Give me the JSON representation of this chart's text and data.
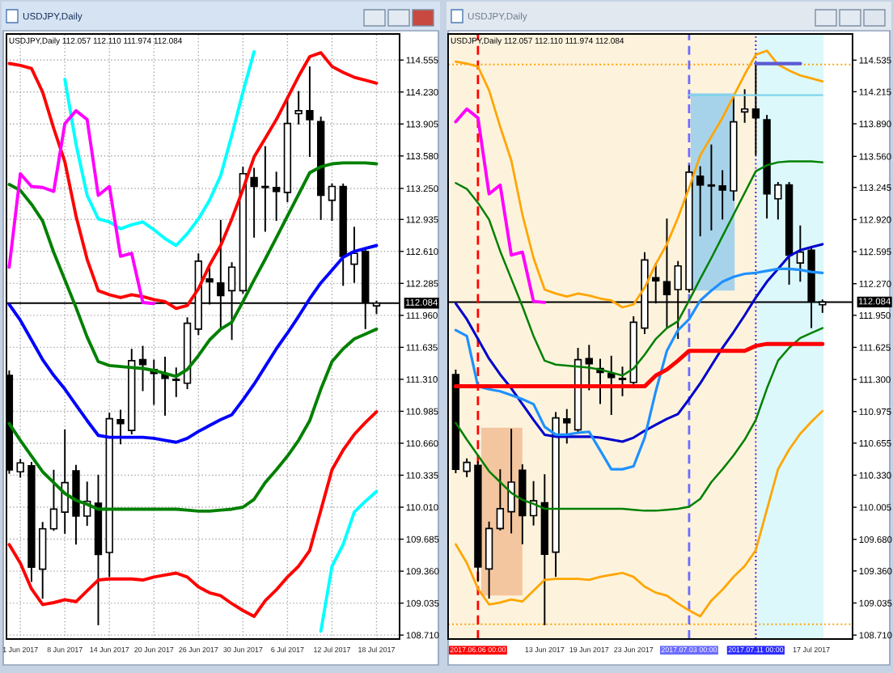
{
  "chart_data": [
    {
      "type": "candlestick",
      "title": "USDJPY,Daily",
      "subtitle": "USDJPY,Daily 112.057 112.110 111.974 112.084",
      "categories": [
        null,
        "1 Jun 2017",
        null,
        null,
        null,
        "8 Jun 2017",
        null,
        null,
        null,
        "14 Jun 2017",
        null,
        null,
        null,
        "20 Jun 2017",
        null,
        null,
        null,
        "26 Jun 2017",
        null,
        null,
        null,
        "30 Jun 2017",
        null,
        null,
        null,
        "6 Jul 2017",
        null,
        null,
        null,
        "12 Jul 2017",
        null,
        null,
        null,
        "18 Jul 2017"
      ],
      "ohlc": [
        [
          111.35,
          111.4,
          110.35,
          110.39
        ],
        [
          110.37,
          110.5,
          110.31,
          110.46
        ],
        [
          110.43,
          110.47,
          109.25,
          109.4
        ],
        [
          109.38,
          109.86,
          109.08,
          109.79
        ],
        [
          109.79,
          110.39,
          109.77,
          109.99
        ],
        [
          109.96,
          110.8,
          109.74,
          110.26
        ],
        [
          110.38,
          110.44,
          109.63,
          109.92
        ],
        [
          109.92,
          110.27,
          109.82,
          110.07
        ],
        [
          110.05,
          110.34,
          108.81,
          109.53
        ],
        [
          109.55,
          110.97,
          109.3,
          110.91
        ],
        [
          110.9,
          111.0,
          110.65,
          110.86
        ],
        [
          110.79,
          111.62,
          110.75,
          111.5
        ],
        [
          111.51,
          111.65,
          111.19,
          111.46
        ],
        [
          111.41,
          111.51,
          111.05,
          111.37
        ],
        [
          111.36,
          111.54,
          110.94,
          111.32
        ],
        [
          111.31,
          111.43,
          111.13,
          111.3
        ],
        [
          111.27,
          111.94,
          111.21,
          111.88
        ],
        [
          111.82,
          112.59,
          111.76,
          112.51
        ],
        [
          112.33,
          112.48,
          112.07,
          112.3
        ],
        [
          112.29,
          112.93,
          111.82,
          112.16
        ],
        [
          112.21,
          112.5,
          111.71,
          112.45
        ],
        [
          112.21,
          113.47,
          112.18,
          113.4
        ],
        [
          113.36,
          113.46,
          112.75,
          113.27
        ],
        [
          113.27,
          113.68,
          112.81,
          113.26
        ],
        [
          113.26,
          113.42,
          112.92,
          113.22
        ],
        [
          113.21,
          114.17,
          113.11,
          113.91
        ],
        [
          114.01,
          114.24,
          113.9,
          114.04
        ],
        [
          114.04,
          114.49,
          113.57,
          113.95
        ],
        [
          113.93,
          113.98,
          112.93,
          113.18
        ],
        [
          113.13,
          113.3,
          112.92,
          113.27
        ],
        [
          113.27,
          113.3,
          112.26,
          112.56
        ],
        [
          112.48,
          112.86,
          112.29,
          112.59
        ],
        [
          112.61,
          112.64,
          111.82,
          112.09
        ],
        [
          112.057,
          112.11,
          111.974,
          112.084
        ]
      ],
      "series": [
        {
          "type": "line",
          "color": "#ff0000",
          "values": [
            114.52,
            114.5,
            114.47,
            114.23,
            113.86,
            113.52,
            112.97,
            112.53,
            112.21,
            112.17,
            112.14,
            112.17,
            112.15,
            112.12,
            112.1,
            112.03,
            112.06,
            112.23,
            112.47,
            112.67,
            112.94,
            113.24,
            113.57,
            113.76,
            113.95,
            114.17,
            114.39,
            114.59,
            114.63,
            114.49,
            114.43,
            114.38,
            114.35,
            114.32
          ]
        },
        {
          "type": "line",
          "color": "#008000",
          "values": [
            113.29,
            113.23,
            113.09,
            112.92,
            112.6,
            112.32,
            112.04,
            111.74,
            111.49,
            111.45,
            111.44,
            111.43,
            111.42,
            111.4,
            111.37,
            111.34,
            111.41,
            111.55,
            111.71,
            111.82,
            111.89,
            112.1,
            112.32,
            112.53,
            112.75,
            112.97,
            113.19,
            113.41,
            113.47,
            113.5,
            113.51,
            113.51,
            113.51,
            113.5
          ]
        },
        {
          "type": "line",
          "color": "#0000ff",
          "values": [
            112.07,
            111.91,
            111.71,
            111.51,
            111.35,
            111.21,
            111.05,
            110.89,
            110.74,
            110.72,
            110.72,
            110.72,
            110.72,
            110.71,
            110.69,
            110.67,
            110.71,
            110.78,
            110.84,
            110.9,
            110.95,
            111.1,
            111.26,
            111.44,
            111.62,
            111.78,
            111.95,
            112.13,
            112.29,
            112.42,
            112.55,
            112.61,
            112.64,
            112.67
          ]
        },
        {
          "type": "line",
          "color": "#008000",
          "values": [
            110.86,
            110.69,
            110.53,
            110.37,
            110.26,
            110.15,
            110.08,
            110.04,
            109.99,
            109.99,
            109.99,
            109.99,
            109.99,
            109.99,
            109.99,
            109.99,
            109.98,
            109.97,
            109.97,
            109.98,
            109.99,
            110.01,
            110.09,
            110.26,
            110.39,
            110.53,
            110.69,
            110.89,
            111.21,
            111.49,
            111.62,
            111.72,
            111.77,
            111.82
          ]
        },
        {
          "type": "line",
          "color": "#ff0000",
          "values": [
            109.63,
            109.44,
            109.18,
            109.02,
            109.04,
            109.07,
            109.05,
            109.16,
            109.27,
            109.28,
            109.28,
            109.28,
            109.27,
            109.3,
            109.32,
            109.34,
            109.3,
            109.2,
            109.14,
            109.11,
            109.03,
            108.96,
            108.9,
            109.06,
            109.17,
            109.3,
            109.41,
            109.57,
            109.98,
            110.39,
            110.59,
            110.75,
            110.87,
            110.98
          ]
        },
        {
          "type": "line",
          "color": "#00ffff",
          "values": [
            null,
            null,
            null,
            null,
            null,
            114.36,
            113.7,
            113.18,
            112.94,
            112.91,
            112.84,
            112.88,
            112.91,
            112.83,
            112.74,
            112.67,
            112.79,
            112.94,
            113.13,
            113.38,
            113.79,
            114.23,
            114.64,
            null,
            null,
            null,
            null,
            null,
            null,
            null,
            null,
            null,
            null,
            null
          ]
        },
        {
          "type": "line",
          "color": "#00ffff",
          "values": [
            null,
            null,
            null,
            null,
            null,
            null,
            null,
            null,
            null,
            null,
            null,
            null,
            null,
            null,
            null,
            null,
            null,
            null,
            null,
            null,
            null,
            null,
            null,
            null,
            null,
            null,
            null,
            null,
            108.75,
            109.41,
            109.63,
            109.96,
            110.07,
            110.17
          ]
        },
        {
          "type": "line",
          "color": "#ff00ff",
          "values": [
            112.45,
            113.4,
            113.27,
            113.26,
            113.22,
            113.91,
            114.04,
            113.95,
            113.18,
            113.27,
            112.56,
            112.59,
            112.09,
            112.08,
            null,
            null,
            null,
            null,
            null,
            null,
            null,
            null,
            null,
            null,
            null,
            null,
            null,
            null,
            null,
            null,
            null,
            null,
            null,
            null
          ]
        }
      ],
      "ylim": [
        108.67,
        114.82
      ],
      "yticks": [
        {
          "value": 108.71,
          "label": "108.710"
        },
        {
          "value": 109.035,
          "label": "109.035"
        },
        {
          "value": 109.36,
          "label": "109.360"
        },
        {
          "value": 109.685,
          "label": "109.685"
        },
        {
          "value": 110.01,
          "label": "110.010"
        },
        {
          "value": 110.335,
          "label": "110.335"
        },
        {
          "value": 110.66,
          "label": "110.660"
        },
        {
          "value": 110.985,
          "label": "110.985"
        },
        {
          "value": 111.31,
          "label": "111.310"
        },
        {
          "value": 111.635,
          "label": "111.635"
        },
        {
          "value": 111.96,
          "label": "111.960"
        },
        {
          "value": 112.285,
          "label": "112.285"
        },
        {
          "value": 112.61,
          "label": "112.610"
        },
        {
          "value": 112.935,
          "label": "112.935"
        },
        {
          "value": 113.25,
          "label": "113.250"
        },
        {
          "value": 113.58,
          "label": "113.580"
        },
        {
          "value": 113.905,
          "label": "113.905"
        },
        {
          "value": 114.23,
          "label": "114.230"
        },
        {
          "value": 114.555,
          "label": "114.555"
        }
      ],
      "grid": true,
      "ref_lines": [
        {
          "axis": "y",
          "value": 112.084,
          "label": "112.084",
          "color": "#000000"
        }
      ]
    },
    {
      "type": "candlestick",
      "title": "USDJPY,Daily",
      "subtitle": "USDJPY,Daily 112.057 112.110 111.974 112.084",
      "categories": [
        null,
        null,
        "2017.06.06 00:00",
        null,
        null,
        null,
        null,
        null,
        "13 Jun 2017",
        null,
        null,
        null,
        "19 Jun 2017",
        null,
        null,
        null,
        "23 Jun 2017",
        null,
        null,
        null,
        null,
        "2017.07.03 00:00",
        null,
        null,
        null,
        null,
        null,
        "2017.07.11 00:00",
        null,
        null,
        null,
        null,
        "17 Jul 2017",
        null
      ],
      "ohlc": [
        [
          111.35,
          111.4,
          110.35,
          110.39
        ],
        [
          110.37,
          110.5,
          110.31,
          110.46
        ],
        [
          110.43,
          110.47,
          109.25,
          109.4
        ],
        [
          109.38,
          109.86,
          109.08,
          109.79
        ],
        [
          109.79,
          110.39,
          109.77,
          109.99
        ],
        [
          109.96,
          110.8,
          109.74,
          110.26
        ],
        [
          110.38,
          110.44,
          109.63,
          109.92
        ],
        [
          109.92,
          110.27,
          109.82,
          110.07
        ],
        [
          110.05,
          110.34,
          108.81,
          109.53
        ],
        [
          109.55,
          110.97,
          109.3,
          110.91
        ],
        [
          110.9,
          111.0,
          110.65,
          110.86
        ],
        [
          110.79,
          111.62,
          110.75,
          111.5
        ],
        [
          111.51,
          111.65,
          111.19,
          111.46
        ],
        [
          111.41,
          111.51,
          111.05,
          111.37
        ],
        [
          111.36,
          111.54,
          110.94,
          111.32
        ],
        [
          111.31,
          111.43,
          111.13,
          111.3
        ],
        [
          111.27,
          111.94,
          111.21,
          111.88
        ],
        [
          111.82,
          112.59,
          111.76,
          112.51
        ],
        [
          112.33,
          112.48,
          112.07,
          112.3
        ],
        [
          112.29,
          112.93,
          111.82,
          112.16
        ],
        [
          112.21,
          112.5,
          111.71,
          112.45
        ],
        [
          112.21,
          113.47,
          112.18,
          113.4
        ],
        [
          113.36,
          113.46,
          112.75,
          113.27
        ],
        [
          113.27,
          113.68,
          112.81,
          113.26
        ],
        [
          113.26,
          113.42,
          112.92,
          113.22
        ],
        [
          113.21,
          114.17,
          113.11,
          113.91
        ],
        [
          114.01,
          114.24,
          113.9,
          114.04
        ],
        [
          114.04,
          114.49,
          113.57,
          113.95
        ],
        [
          113.93,
          113.98,
          112.93,
          113.18
        ],
        [
          113.13,
          113.3,
          112.92,
          113.27
        ],
        [
          113.27,
          113.3,
          112.26,
          112.56
        ],
        [
          112.48,
          112.86,
          112.29,
          112.59
        ],
        [
          112.61,
          112.64,
          111.82,
          112.09
        ],
        [
          112.057,
          112.11,
          111.974,
          112.084
        ]
      ],
      "series": [
        {
          "type": "line",
          "color": "#ffa500",
          "values": [
            114.52,
            114.5,
            114.47,
            114.23,
            113.86,
            113.52,
            112.97,
            112.53,
            112.21,
            112.17,
            112.14,
            112.17,
            112.15,
            112.12,
            112.1,
            112.03,
            112.06,
            112.23,
            112.47,
            112.67,
            112.94,
            113.24,
            113.57,
            113.76,
            113.95,
            114.17,
            114.39,
            114.59,
            114.63,
            114.49,
            114.43,
            114.38,
            114.35,
            114.32
          ]
        },
        {
          "type": "line",
          "color": "#008000",
          "values": [
            113.29,
            113.23,
            113.09,
            112.92,
            112.6,
            112.32,
            112.04,
            111.74,
            111.49,
            111.45,
            111.44,
            111.43,
            111.42,
            111.4,
            111.37,
            111.34,
            111.41,
            111.55,
            111.71,
            111.82,
            111.89,
            112.1,
            112.32,
            112.53,
            112.75,
            112.97,
            113.19,
            113.41,
            113.47,
            113.5,
            113.51,
            113.51,
            113.51,
            113.5
          ]
        },
        {
          "type": "line",
          "color": "#0000cd",
          "values": [
            112.07,
            111.91,
            111.71,
            111.51,
            111.35,
            111.21,
            111.05,
            110.89,
            110.74,
            110.72,
            110.72,
            110.72,
            110.72,
            110.71,
            110.69,
            110.67,
            110.71,
            110.78,
            110.84,
            110.9,
            110.95,
            111.1,
            111.26,
            111.44,
            111.62,
            111.78,
            111.95,
            112.13,
            112.29,
            112.42,
            112.55,
            112.61,
            112.64,
            112.67
          ]
        },
        {
          "type": "line",
          "color": "#008000",
          "values": [
            110.86,
            110.69,
            110.53,
            110.37,
            110.26,
            110.15,
            110.08,
            110.04,
            109.99,
            109.99,
            109.99,
            109.99,
            109.99,
            109.99,
            109.99,
            109.99,
            109.98,
            109.97,
            109.97,
            109.98,
            109.99,
            110.01,
            110.09,
            110.26,
            110.39,
            110.53,
            110.69,
            110.89,
            111.21,
            111.49,
            111.62,
            111.72,
            111.77,
            111.82
          ]
        },
        {
          "type": "line",
          "color": "#ffa500",
          "values": [
            109.63,
            109.44,
            109.18,
            109.02,
            109.04,
            109.07,
            109.05,
            109.16,
            109.27,
            109.28,
            109.28,
            109.28,
            109.27,
            109.3,
            109.32,
            109.34,
            109.3,
            109.2,
            109.14,
            109.11,
            109.03,
            108.96,
            108.9,
            109.06,
            109.17,
            109.3,
            109.41,
            109.57,
            109.98,
            110.39,
            110.59,
            110.75,
            110.87,
            110.98
          ]
        },
        {
          "type": "line",
          "color": "#1e90ff",
          "values": [
            111.8,
            111.74,
            111.23,
            111.2,
            111.18,
            111.14,
            111.1,
            111.05,
            110.82,
            110.74,
            110.74,
            110.76,
            110.77,
            110.58,
            110.39,
            110.39,
            110.42,
            110.71,
            111.18,
            111.59,
            111.8,
            111.91,
            112.1,
            112.2,
            112.29,
            112.34,
            112.37,
            112.38,
            112.4,
            112.42,
            112.42,
            112.41,
            112.39,
            112.38
          ]
        },
        {
          "type": "line",
          "color": "#ff0000",
          "values": [
            111.23,
            111.23,
            111.23,
            111.23,
            111.23,
            111.23,
            111.23,
            111.23,
            111.23,
            111.23,
            111.23,
            111.23,
            111.23,
            111.23,
            111.23,
            111.23,
            111.23,
            111.23,
            111.34,
            111.4,
            111.49,
            111.59,
            111.59,
            111.59,
            111.59,
            111.59,
            111.59,
            111.64,
            111.66,
            111.66,
            111.66,
            111.66,
            111.66,
            111.66
          ]
        },
        {
          "type": "line",
          "color": "#ff00ff",
          "values": [
            113.91,
            114.04,
            113.95,
            113.18,
            113.27,
            112.56,
            112.59,
            112.09,
            112.08,
            null,
            null,
            null,
            null,
            null,
            null,
            null,
            null,
            null,
            null,
            null,
            null,
            null,
            null,
            null,
            null,
            null,
            null,
            null,
            null,
            null,
            null,
            null,
            null,
            null
          ]
        },
        {
          "type": "line",
          "color": "#7fd4ea",
          "values": [
            null,
            null,
            null,
            null,
            null,
            null,
            null,
            null,
            null,
            null,
            null,
            null,
            null,
            null,
            null,
            null,
            null,
            null,
            null,
            null,
            null,
            114.18,
            114.18,
            114.18,
            114.18,
            114.18,
            114.18,
            114.18,
            114.18,
            114.18,
            114.18,
            114.18,
            114.18,
            114.18
          ]
        },
        {
          "type": "line",
          "color": "#5b5bd6",
          "values": [
            null,
            null,
            null,
            null,
            null,
            null,
            null,
            null,
            null,
            null,
            null,
            null,
            null,
            null,
            null,
            null,
            null,
            null,
            null,
            null,
            null,
            null,
            null,
            null,
            null,
            null,
            null,
            114.5,
            114.5,
            114.5,
            114.5,
            114.5,
            null,
            null
          ]
        }
      ],
      "ylim": [
        108.67,
        114.8
      ],
      "yticks": [
        {
          "value": 108.71,
          "label": "108.710"
        },
        {
          "value": 109.035,
          "label": "109.035"
        },
        {
          "value": 109.36,
          "label": "109.360"
        },
        {
          "value": 109.68,
          "label": "109.680"
        },
        {
          "value": 110.005,
          "label": "110.005"
        },
        {
          "value": 110.33,
          "label": "110.330"
        },
        {
          "value": 110.655,
          "label": "110.655"
        },
        {
          "value": 110.975,
          "label": "110.975"
        },
        {
          "value": 111.3,
          "label": "111.300"
        },
        {
          "value": 111.625,
          "label": "111.625"
        },
        {
          "value": 111.95,
          "label": "111.950"
        },
        {
          "value": 112.27,
          "label": "112.270"
        },
        {
          "value": 112.595,
          "label": "112.595"
        },
        {
          "value": 112.92,
          "label": "112.920"
        },
        {
          "value": 113.245,
          "label": "113.245"
        },
        {
          "value": 113.56,
          "label": "113.560"
        },
        {
          "value": 113.89,
          "label": "113.890"
        },
        {
          "value": 114.215,
          "label": "114.215"
        },
        {
          "value": 114.535,
          "label": "114.535"
        }
      ],
      "ref_lines": [
        {
          "axis": "y",
          "value": 112.084,
          "label": "112.084",
          "color": "#000000"
        },
        {
          "axis": "y",
          "value": 114.49,
          "color": "#ffa500",
          "line_style": "dotted"
        },
        {
          "axis": "y",
          "value": 108.82,
          "color": "#ffa500",
          "line_style": "dotted"
        },
        {
          "axis": "x",
          "value": "2017.06.06 00:00",
          "color": "#ff0000",
          "line_style": "dashed"
        },
        {
          "axis": "x",
          "value": "2017.07.03 00:00",
          "color": "#6a6aff",
          "line_style": "dashed"
        },
        {
          "axis": "x",
          "value": "2017.07.11 00:00",
          "color": "#2b2bff",
          "line_style": "dotted"
        }
      ]
    }
  ]
}
